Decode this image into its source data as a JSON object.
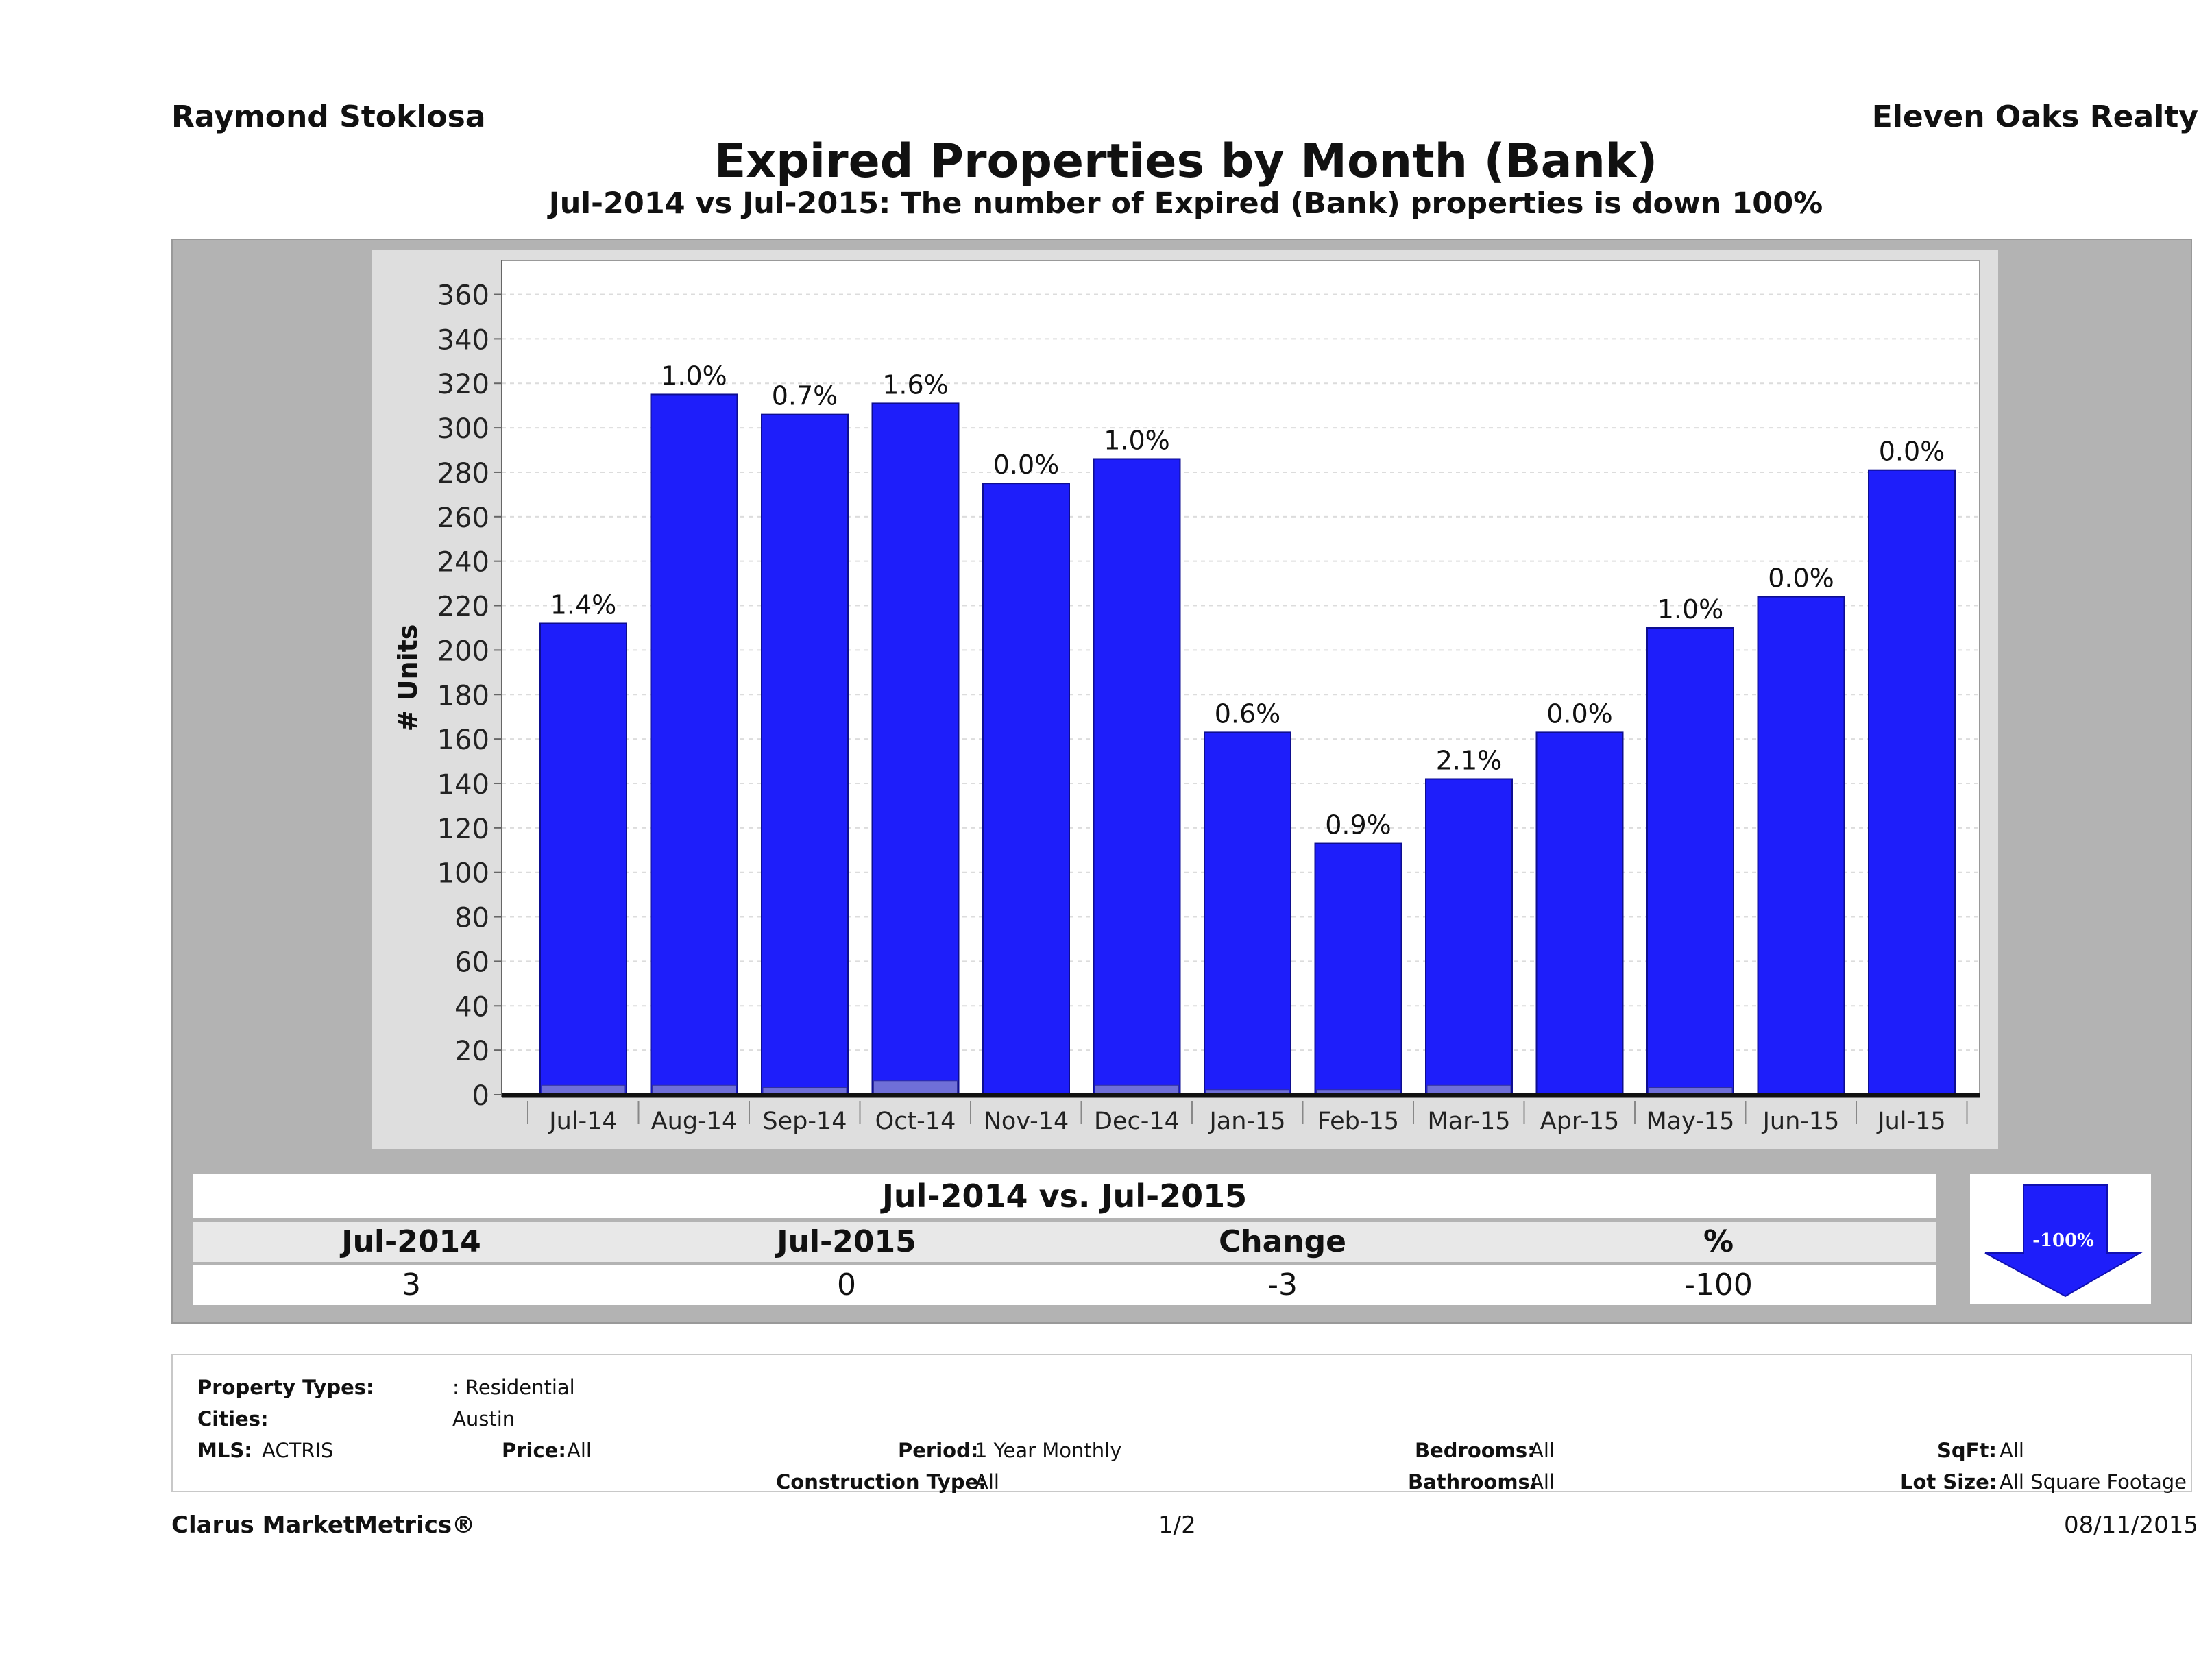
{
  "header": {
    "agent": "Raymond Stoklosa",
    "company": "Eleven Oaks Realty",
    "title": "Expired Properties by Month (Bank)",
    "subtitle": "Jul-2014 vs Jul-2015: The number of Expired (Bank)  properties is down 100%"
  },
  "chart_data": {
    "type": "bar",
    "ylabel": "# Units",
    "ylim": [
      0,
      370
    ],
    "yticks": [
      0,
      20,
      40,
      60,
      80,
      100,
      120,
      140,
      160,
      180,
      200,
      220,
      240,
      260,
      280,
      300,
      320,
      340,
      360
    ],
    "grid": true,
    "categories": [
      "Jul-14",
      "Aug-14",
      "Sep-14",
      "Oct-14",
      "Nov-14",
      "Dec-14",
      "Jan-15",
      "Feb-15",
      "Mar-15",
      "Apr-15",
      "May-15",
      "Jun-15",
      "Jul-15"
    ],
    "values": [
      212,
      315,
      306,
      311,
      275,
      286,
      163,
      113,
      142,
      163,
      210,
      224,
      281
    ],
    "bank_values": [
      3,
      3,
      2,
      5,
      0,
      3,
      1,
      1,
      3,
      0,
      2,
      0,
      0
    ],
    "data_labels": [
      "1.4%",
      "1.0%",
      "0.7%",
      "1.6%",
      "0.0%",
      "1.0%",
      "0.6%",
      "0.9%",
      "2.1%",
      "0.0%",
      "1.0%",
      "0.0%",
      "0.0%"
    ],
    "colors": {
      "bar": "#1e1efa",
      "bank": "#6f6fd8",
      "plot_bg": "#ffffff",
      "frame": "#dedede"
    }
  },
  "comparison": {
    "title": "Jul-2014 vs. Jul-2015",
    "headers": [
      "Jul-2014",
      "Jul-2015",
      "Change",
      "%"
    ],
    "values": [
      "3",
      "0",
      "-3",
      "-100"
    ],
    "arrow_label": "-100%",
    "arrow_color": "#1e1efa"
  },
  "filters": {
    "property_types_label": "Property Types:",
    "property_types_value": ": Residential",
    "cities_label": "Cities:",
    "cities_value": "Austin",
    "mls_label": "MLS:",
    "mls_value": "ACTRIS",
    "price_label": "Price:",
    "price_value": "All",
    "period_label": "Period:",
    "period_value": "1 Year Monthly",
    "construction_label": "Construction Type:",
    "construction_value": "All",
    "bedrooms_label": "Bedrooms:",
    "bedrooms_value": "All",
    "bathrooms_label": "Bathrooms:",
    "bathrooms_value": "All",
    "sqft_label": "SqFt:",
    "sqft_value": "All",
    "lotsize_label": "Lot Size:",
    "lotsize_value": "All Square Footage"
  },
  "footer": {
    "brand": "Clarus MarketMetrics®",
    "page": "1/2",
    "date": "08/11/2015"
  }
}
